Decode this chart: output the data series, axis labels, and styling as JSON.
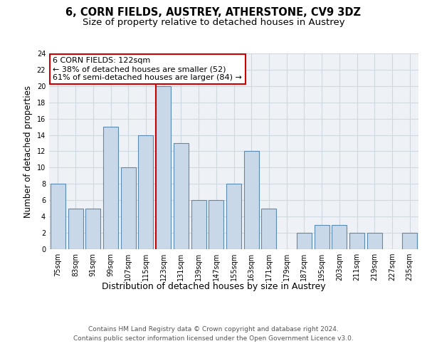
{
  "title_line1": "6, CORN FIELDS, AUSTREY, ATHERSTONE, CV9 3DZ",
  "title_line2": "Size of property relative to detached houses in Austrey",
  "xlabel": "Distribution of detached houses by size in Austrey",
  "ylabel": "Number of detached properties",
  "categories": [
    "75sqm",
    "83sqm",
    "91sqm",
    "99sqm",
    "107sqm",
    "115sqm",
    "123sqm",
    "131sqm",
    "139sqm",
    "147sqm",
    "155sqm",
    "163sqm",
    "171sqm",
    "179sqm",
    "187sqm",
    "195sqm",
    "203sqm",
    "211sqm",
    "219sqm",
    "227sqm",
    "235sqm"
  ],
  "values": [
    8,
    5,
    5,
    15,
    10,
    14,
    20,
    13,
    6,
    6,
    8,
    12,
    5,
    0,
    2,
    3,
    3,
    2,
    2,
    0,
    2
  ],
  "bar_color": "#c8d8e8",
  "bar_edge_color": "#5a8ab0",
  "highlight_index": 6,
  "annotation_line1": "6 CORN FIELDS: 122sqm",
  "annotation_line2": "← 38% of detached houses are smaller (52)",
  "annotation_line3": "61% of semi-detached houses are larger (84) →",
  "annotation_box_color": "#ffffff",
  "annotation_box_edge": "#cc0000",
  "red_line_color": "#cc0000",
  "ylim": [
    0,
    24
  ],
  "yticks": [
    0,
    2,
    4,
    6,
    8,
    10,
    12,
    14,
    16,
    18,
    20,
    22,
    24
  ],
  "grid_color": "#d0d8e0",
  "background_color": "#eef2f6",
  "footer_line1": "Contains HM Land Registry data © Crown copyright and database right 2024.",
  "footer_line2": "Contains public sector information licensed under the Open Government Licence v3.0.",
  "title_fontsize": 10.5,
  "subtitle_fontsize": 9.5,
  "xlabel_fontsize": 9,
  "ylabel_fontsize": 8.5,
  "tick_fontsize": 7,
  "annotation_fontsize": 8,
  "footer_fontsize": 6.5
}
